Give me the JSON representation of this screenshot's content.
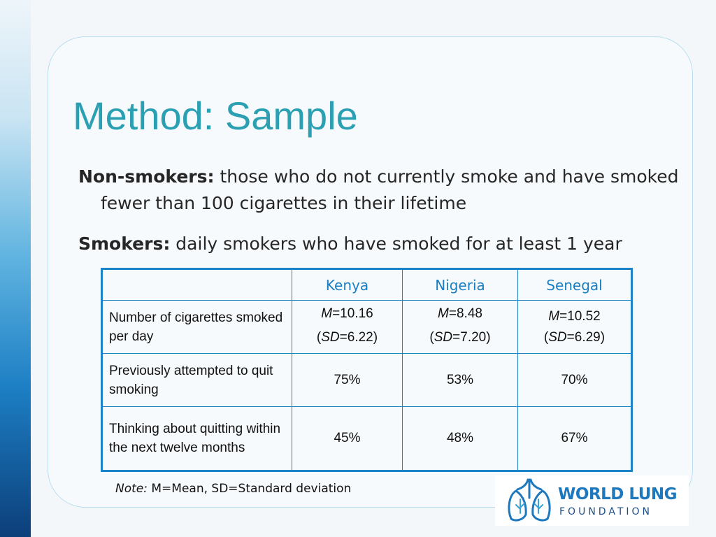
{
  "slide": {
    "title": "Method: Sample",
    "definitions": [
      {
        "term": "Non-smokers:",
        "text": " those who do not currently smoke and have smoked fewer than 100 cigarettes in their lifetime"
      },
      {
        "term": "Smokers:",
        "text": " daily smokers who have smoked for at least 1 year"
      }
    ]
  },
  "table": {
    "columns": [
      "",
      "Kenya",
      "Nigeria",
      "Senegal"
    ],
    "rows": [
      {
        "label": "Number of cigarettes smoked per day",
        "cells": [
          {
            "m_label": "M",
            "m_value": "=10.16",
            "sd_open": "(",
            "sd_label": "SD",
            "sd_value": "=6.22)"
          },
          {
            "m_label": "M",
            "m_value": "=8.48",
            "sd_open": "(",
            "sd_label": "SD",
            "sd_value": "=7.20)"
          },
          {
            "m_label": "M",
            "m_value": "=10.52",
            "sd_open": "(",
            "sd_label": "SD",
            "sd_value": "=6.29)"
          }
        ]
      },
      {
        "label": "Previously attempted to quit smoking",
        "values": [
          "75%",
          "53%",
          "70%"
        ]
      },
      {
        "label": "Thinking about quitting within the next twelve months",
        "values": [
          "45%",
          "48%",
          "67%"
        ]
      }
    ]
  },
  "note": {
    "label": "Note:",
    "text": " M=Mean, SD=Standard deviation"
  },
  "logo": {
    "line1": "WORLD LUNG",
    "line2": "FOUNDATION",
    "icon": "lungs-icon",
    "colors": {
      "primary": "#1d78bd",
      "secondary": "#1d4f86"
    }
  },
  "colors": {
    "title": "#2ca0b3",
    "table_border": "#1c84c6",
    "header_text": "#1a7fc2"
  }
}
